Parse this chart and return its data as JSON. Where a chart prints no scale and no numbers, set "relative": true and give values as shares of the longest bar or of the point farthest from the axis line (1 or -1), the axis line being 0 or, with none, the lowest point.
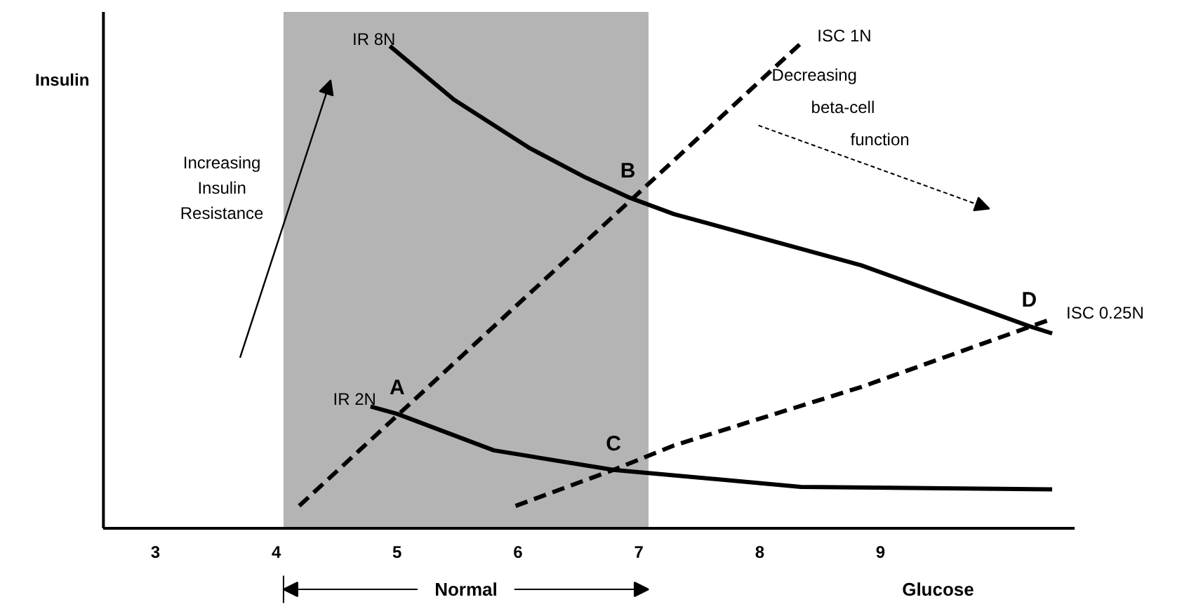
{
  "chart_data": {
    "type": "line",
    "relative": true,
    "xlabel": "Glucose",
    "ylabel": "Insulin",
    "xlim": [
      2.57,
      10.6
    ],
    "xticks": [
      3,
      4,
      5,
      6,
      7,
      8,
      9
    ],
    "tick_labels": "x",
    "grid": false,
    "legend": false,
    "series": [
      {
        "name": "IR 8N",
        "color": "#000000",
        "line_style": "solid",
        "x": [
          4.94,
          5.47,
          6.1,
          6.56,
          6.91,
          7.29,
          8.84,
          10.23,
          10.42
        ],
        "values": [
          0.99,
          0.88,
          0.78,
          0.72,
          0.68,
          0.645,
          0.54,
          0.415,
          0.4
        ]
      },
      {
        "name": "IR 2N",
        "color": "#000000",
        "line_style": "solid",
        "x": [
          4.78,
          5.0,
          5.8,
          6.79,
          8.34,
          10.42
        ],
        "values": [
          0.25,
          0.235,
          0.16,
          0.12,
          0.085,
          0.08
        ]
      },
      {
        "name": "ISC 1N",
        "color": "#000000",
        "line_style": "dashed",
        "x": [
          4.19,
          8.36
        ],
        "values": [
          0.046,
          1.0
        ]
      },
      {
        "name": "ISC 0.25N",
        "color": "#000000",
        "line_style": "dashed",
        "x": [
          5.98,
          6.79,
          7.29,
          8.84,
          10.42
        ],
        "values": [
          0.046,
          0.12,
          0.17,
          0.29,
          0.43
        ]
      }
    ],
    "bands": [
      {
        "axis": "x",
        "from": 4.06,
        "to": 7.08,
        "label": "Normal",
        "color": "#b4b4b4"
      }
    ],
    "annotations": [
      {
        "text": "A",
        "x": 5.0,
        "y": 0.235
      },
      {
        "text": "B",
        "x": 6.91,
        "y": 0.68
      },
      {
        "text": "C",
        "x": 6.79,
        "y": 0.12
      },
      {
        "text": "D",
        "x": 10.23,
        "y": 0.415
      },
      "Increasing\nInsulin\nResistance",
      "Decreasing\nbeta-cell\nfunction"
    ]
  }
}
